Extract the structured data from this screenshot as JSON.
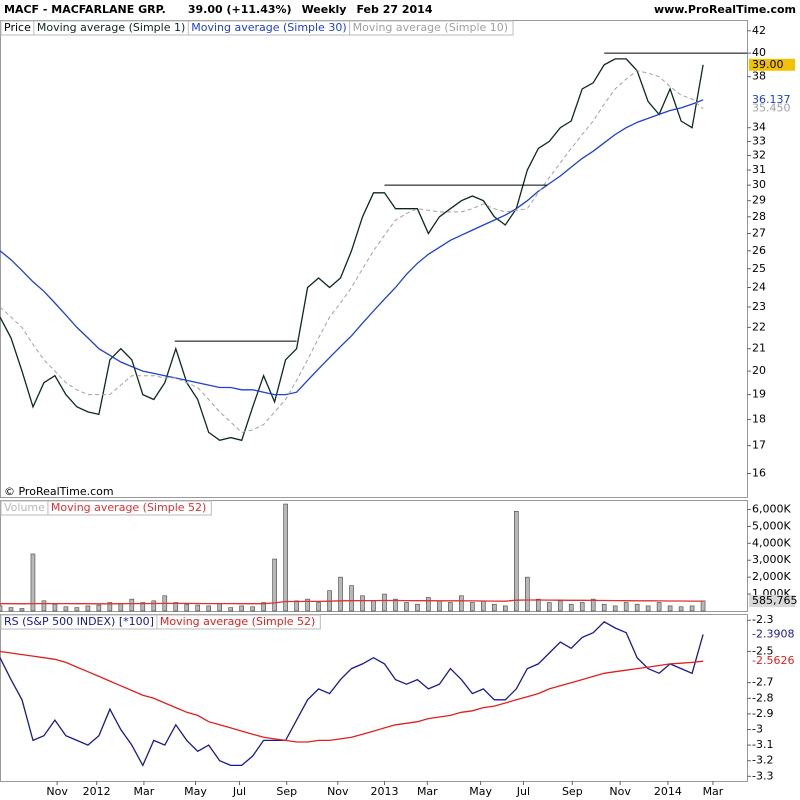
{
  "chart_data": [
    {
      "type": "line",
      "title": "MACF - MACFARLANE GRP.",
      "quote": "39.00 (+11.43%)",
      "period": "Weekly",
      "date": "Feb 27 2014",
      "source": "www.ProRealTime.com",
      "watermark": "© ProRealTime.com",
      "label": "Price",
      "log": true,
      "xlim": [
        0,
        136
      ],
      "ylim": [
        15.2,
        43
      ],
      "yticks": [
        16,
        17,
        18,
        19,
        20,
        21,
        22,
        23,
        24,
        25,
        26,
        27,
        28,
        29,
        30,
        31,
        32,
        33,
        34,
        38,
        40,
        42
      ],
      "x": [
        0,
        2,
        4,
        6,
        8,
        10,
        12,
        14,
        16,
        18,
        20,
        22,
        24,
        26,
        28,
        30,
        32,
        34,
        36,
        38,
        40,
        42,
        44,
        46,
        48,
        50,
        52,
        54,
        56,
        58,
        60,
        62,
        64,
        66,
        68,
        70,
        72,
        74,
        76,
        78,
        80,
        82,
        84,
        86,
        88,
        90,
        92,
        94,
        96,
        98,
        100,
        102,
        104,
        106,
        108,
        110,
        112,
        114,
        116,
        118,
        120,
        122,
        124,
        126,
        128
      ],
      "series": [
        {
          "name": "Moving average (Simple 1)",
          "color": "#0b2a1a",
          "last_label": "39.00",
          "label_bg": "#f2c200",
          "values": [
            22.5,
            21.5,
            20,
            18.5,
            19.5,
            19.8,
            19,
            18.5,
            18.3,
            18.2,
            20.5,
            21,
            20.5,
            19,
            18.8,
            19.5,
            21,
            19.5,
            18.8,
            17.5,
            17.2,
            17.3,
            17.2,
            18.5,
            19.8,
            18.7,
            20.5,
            21,
            24,
            24.5,
            24,
            24.5,
            26,
            28,
            29.5,
            29.5,
            28.5,
            28.5,
            28.5,
            27,
            28,
            28.5,
            29,
            29.3,
            29,
            28,
            27.5,
            28.5,
            31,
            32.5,
            33,
            34,
            34.5,
            37,
            37.5,
            39,
            39.5,
            39.5,
            38.5,
            36,
            35,
            37,
            34.5,
            34,
            39
          ]
        },
        {
          "name": "Moving average (Simple 30)",
          "color": "#2040d0",
          "last_label": "36.137",
          "values": [
            26,
            25.5,
            24.9,
            24.3,
            23.8,
            23.2,
            22.6,
            22,
            21.5,
            21,
            20.7,
            20.4,
            20.2,
            20,
            19.9,
            19.8,
            19.7,
            19.6,
            19.5,
            19.4,
            19.3,
            19.3,
            19.2,
            19.2,
            19.1,
            19,
            19,
            19.1,
            19.6,
            20.1,
            20.6,
            21.1,
            21.6,
            22.2,
            22.8,
            23.4,
            24,
            24.7,
            25.3,
            25.8,
            26.2,
            26.6,
            26.9,
            27.2,
            27.5,
            27.8,
            28.1,
            28.5,
            29,
            29.6,
            30.1,
            30.6,
            31.2,
            31.8,
            32.3,
            32.9,
            33.5,
            34,
            34.4,
            34.7,
            35,
            35.3,
            35.5,
            35.8,
            36.137
          ]
        },
        {
          "name": "Moving average (Simple 10)",
          "color": "#a0a0a0",
          "dash": true,
          "last_label": "35.450",
          "values": [
            23,
            22.5,
            22,
            21.2,
            20.5,
            20,
            19.5,
            19.2,
            19,
            19,
            19,
            19.4,
            19.8,
            19.8,
            19.8,
            19.7,
            19.7,
            19.5,
            19.3,
            18.8,
            18.3,
            17.9,
            17.5,
            17.6,
            17.8,
            18.3,
            18.8,
            19.6,
            20.5,
            21.5,
            22.5,
            23.2,
            24,
            25,
            26,
            26.9,
            27.8,
            28.2,
            28.5,
            28.4,
            28.3,
            28.3,
            28.3,
            28.5,
            28.8,
            28.5,
            28.3,
            28.4,
            28.5,
            29.5,
            30.5,
            31.5,
            32.5,
            33.5,
            34.5,
            35.8,
            37,
            37.8,
            38.5,
            38.3,
            38,
            37.2,
            36.5,
            36.2,
            35.45
          ]
        }
      ],
      "levels": [
        {
          "value": 21.35,
          "x": [
            31.8,
            54
          ]
        },
        {
          "value": 30,
          "x": [
            70,
            99.6
          ]
        },
        {
          "value": 40,
          "x": [
            110,
            136
          ]
        }
      ]
    },
    {
      "type": "bar",
      "xlim": [
        0,
        136
      ],
      "ylim": [
        0,
        6560
      ],
      "yticks": [
        {
          "value": 1000,
          "label": "1,000K"
        },
        {
          "value": 2000,
          "label": "2,000K"
        },
        {
          "value": 3000,
          "label": "3,000K"
        },
        {
          "value": 4000,
          "label": "4,000K"
        },
        {
          "value": 5000,
          "label": "5,000K"
        },
        {
          "value": 6000,
          "label": "6,000K"
        }
      ],
      "x": [
        0,
        2,
        4,
        6,
        8,
        10,
        12,
        14,
        16,
        18,
        20,
        22,
        24,
        26,
        28,
        30,
        32,
        34,
        36,
        38,
        40,
        42,
        44,
        46,
        48,
        50,
        52,
        54,
        56,
        58,
        60,
        62,
        64,
        66,
        68,
        70,
        72,
        74,
        76,
        78,
        80,
        82,
        84,
        86,
        88,
        90,
        92,
        94,
        96,
        98,
        100,
        102,
        104,
        106,
        108,
        110,
        112,
        114,
        116,
        118,
        120,
        122,
        124,
        126,
        128
      ],
      "series": [
        {
          "name": "Volume",
          "color": "#b8b8b8",
          "values": [
            300,
            200,
            150,
            3370,
            600,
            400,
            250,
            200,
            300,
            350,
            500,
            450,
            700,
            500,
            600,
            900,
            500,
            400,
            350,
            300,
            450,
            200,
            300,
            250,
            500,
            3070,
            6320,
            600,
            700,
            500,
            1200,
            2000,
            1500,
            900,
            600,
            1000,
            700,
            500,
            400,
            800,
            600,
            500,
            900,
            500,
            600,
            400,
            300,
            5890,
            2000,
            700,
            500,
            600,
            400,
            500,
            700,
            400,
            300,
            500,
            400,
            300,
            500,
            300,
            250,
            300,
            600
          ]
        },
        {
          "name": "Moving average (Simple 52)",
          "type": "line",
          "color": "#e03030",
          "last_label": "585,765",
          "label_bg": "#d8d8d8",
          "values": [
            430,
            430,
            425,
            440,
            440,
            440,
            435,
            430,
            430,
            425,
            425,
            430,
            435,
            440,
            445,
            450,
            450,
            450,
            445,
            440,
            440,
            435,
            430,
            430,
            430,
            480,
            560,
            560,
            565,
            570,
            580,
            600,
            610,
            615,
            615,
            620,
            620,
            615,
            610,
            610,
            605,
            600,
            600,
            595,
            590,
            585,
            580,
            640,
            650,
            650,
            645,
            640,
            635,
            630,
            625,
            620,
            615,
            610,
            605,
            600,
            595,
            590,
            590,
            588,
            585.765
          ]
        }
      ]
    },
    {
      "type": "line",
      "xlim": [
        0,
        136
      ],
      "ylim": [
        -3.33,
        -2.26
      ],
      "yticks": [
        -2.3,
        -2.5,
        -2.7,
        -2.8,
        -2.9,
        -3,
        -3.1,
        -3.2,
        -3.3
      ],
      "xticks": [
        {
          "value": 10.4,
          "label": "Nov"
        },
        {
          "value": 17.6,
          "label": "2012"
        },
        {
          "value": 26.2,
          "label": "Mar"
        },
        {
          "value": 35.6,
          "label": "May"
        },
        {
          "value": 43.6,
          "label": "Jul"
        },
        {
          "value": 52.2,
          "label": "Sep"
        },
        {
          "value": 61.5,
          "label": "Nov"
        },
        {
          "value": 70,
          "label": "2013"
        },
        {
          "value": 77.8,
          "label": "Mar"
        },
        {
          "value": 87.5,
          "label": "May"
        },
        {
          "value": 95.3,
          "label": "Jul"
        },
        {
          "value": 104.2,
          "label": "Sep"
        },
        {
          "value": 112.9,
          "label": "Nov"
        },
        {
          "value": 121.6,
          "label": "2014"
        },
        {
          "value": 129.8,
          "label": "Mar"
        }
      ],
      "x": [
        0,
        2,
        4,
        6,
        8,
        10,
        12,
        14,
        16,
        18,
        20,
        22,
        24,
        26,
        28,
        30,
        32,
        34,
        36,
        38,
        40,
        42,
        44,
        46,
        48,
        50,
        52,
        54,
        56,
        58,
        60,
        62,
        64,
        66,
        68,
        70,
        72,
        74,
        76,
        78,
        80,
        82,
        84,
        86,
        88,
        90,
        92,
        94,
        96,
        98,
        100,
        102,
        104,
        106,
        108,
        110,
        112,
        114,
        116,
        118,
        120,
        122,
        124,
        126,
        128
      ],
      "series": [
        {
          "name": "RS (S&P 500 INDEX) [*100]",
          "color": "#1a1a8c",
          "last_label": "-2.3908",
          "values": [
            -2.54,
            -2.68,
            -2.81,
            -3.07,
            -3.04,
            -2.94,
            -3.04,
            -3.07,
            -3.1,
            -3.04,
            -2.87,
            -3,
            -3.1,
            -3.23,
            -3.07,
            -3.1,
            -2.97,
            -3.07,
            -3.14,
            -3.1,
            -3.2,
            -3.23,
            -3.23,
            -3.17,
            -3.07,
            -3.07,
            -3.07,
            -2.94,
            -2.81,
            -2.74,
            -2.77,
            -2.68,
            -2.61,
            -2.58,
            -2.54,
            -2.58,
            -2.68,
            -2.71,
            -2.68,
            -2.74,
            -2.71,
            -2.61,
            -2.68,
            -2.77,
            -2.74,
            -2.81,
            -2.81,
            -2.74,
            -2.61,
            -2.58,
            -2.51,
            -2.44,
            -2.48,
            -2.41,
            -2.38,
            -2.31,
            -2.35,
            -2.38,
            -2.54,
            -2.61,
            -2.64,
            -2.58,
            -2.61,
            -2.64,
            -2.3908
          ]
        },
        {
          "name": "Moving average (Simple 52)",
          "color": "#e02020",
          "last_label": "-2.5626",
          "values": [
            -2.5,
            -2.51,
            -2.52,
            -2.53,
            -2.54,
            -2.55,
            -2.57,
            -2.6,
            -2.63,
            -2.66,
            -2.69,
            -2.72,
            -2.75,
            -2.78,
            -2.8,
            -2.83,
            -2.86,
            -2.89,
            -2.91,
            -2.95,
            -2.97,
            -2.99,
            -3.01,
            -3.03,
            -3.05,
            -3.06,
            -3.07,
            -3.08,
            -3.08,
            -3.07,
            -3.07,
            -3.06,
            -3.05,
            -3.03,
            -3.01,
            -2.99,
            -2.97,
            -2.96,
            -2.95,
            -2.93,
            -2.92,
            -2.91,
            -2.89,
            -2.88,
            -2.86,
            -2.85,
            -2.83,
            -2.81,
            -2.79,
            -2.77,
            -2.74,
            -2.72,
            -2.7,
            -2.68,
            -2.66,
            -2.64,
            -2.63,
            -2.62,
            -2.61,
            -2.6,
            -2.59,
            -2.58,
            -2.575,
            -2.57,
            -2.5626
          ]
        }
      ]
    }
  ]
}
